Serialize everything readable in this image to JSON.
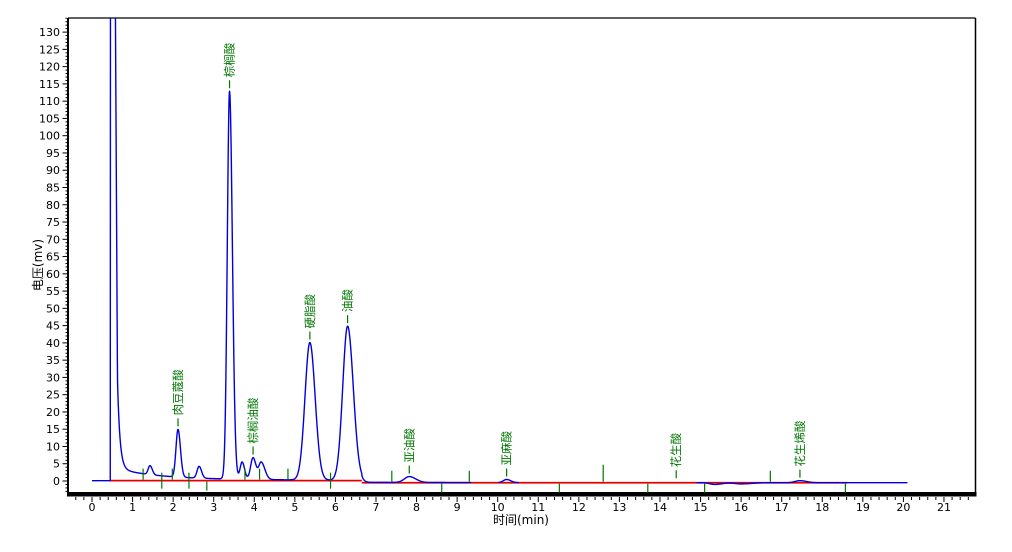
{
  "chart_data": {
    "type": "line",
    "title": "",
    "xlabel": "时间(min)",
    "ylabel": "电压(mv)",
    "x_axis": {
      "tick_start": 0,
      "tick_end": 21,
      "major_step": 1,
      "minor_step": 0.2,
      "visible_min": -0.59,
      "visible_max": 21.77
    },
    "y_axis": {
      "tick_start": 0,
      "tick_end": 130,
      "major_step": 5,
      "minor_step": 1,
      "visible_min": -3.2,
      "visible_max": 134.2
    },
    "grid": false,
    "legend": false,
    "colors": {
      "trace": "#0000dd",
      "baseline": "#e80000",
      "marker": "#007700",
      "axis": "#000000",
      "background": "#ffffff"
    },
    "solvent_front": {
      "rise_t": 0.455,
      "plateau_end_t": 0.575,
      "clipped_above_mv": 134,
      "drop_end_t": 0.63,
      "drop_to_mv": 25
    },
    "peaks": [
      {
        "name": "",
        "rt": 1.43,
        "height_mv": 2.6,
        "sigma_l": 0.045,
        "sigma_r": 0.055,
        "labeled": false
      },
      {
        "name": "肉豆蔻酸",
        "rt": 2.12,
        "height_mv": 13.8,
        "sigma_l": 0.05,
        "sigma_r": 0.06,
        "labeled": true
      },
      {
        "name": "",
        "rt": 2.64,
        "height_mv": 3.4,
        "sigma_l": 0.05,
        "sigma_r": 0.06,
        "labeled": false
      },
      {
        "name": "棕榈酸",
        "rt": 3.39,
        "height_mv": 112.3,
        "sigma_l": 0.055,
        "sigma_r": 0.07,
        "labeled": true
      },
      {
        "name": "",
        "rt": 3.7,
        "height_mv": 5.0,
        "sigma_l": 0.05,
        "sigma_r": 0.06,
        "labeled": false
      },
      {
        "name": "棕榈油酸",
        "rt": 3.97,
        "height_mv": 6.3,
        "sigma_l": 0.06,
        "sigma_r": 0.07,
        "labeled": true
      },
      {
        "name": "",
        "rt": 4.17,
        "height_mv": 5.0,
        "sigma_l": 0.06,
        "sigma_r": 0.09,
        "labeled": false
      },
      {
        "name": "硬脂酸",
        "rt": 5.37,
        "height_mv": 39.8,
        "sigma_l": 0.12,
        "sigma_r": 0.13,
        "labeled": true
      },
      {
        "name": "油酸",
        "rt": 6.3,
        "height_mv": 44.6,
        "sigma_l": 0.12,
        "sigma_r": 0.14,
        "labeled": true
      },
      {
        "name": "亚油酸",
        "rt": 7.82,
        "height_mv": 1.7,
        "sigma_l": 0.12,
        "sigma_r": 0.16,
        "labeled": true
      },
      {
        "name": "亚麻酸",
        "rt": 10.22,
        "height_mv": 0.9,
        "sigma_l": 0.08,
        "sigma_r": 0.1,
        "labeled": true
      },
      {
        "name": "花生酸",
        "rt": 14.4,
        "height_mv": 0.4,
        "sigma_l": 0.05,
        "sigma_r": 0.06,
        "labeled": true
      },
      {
        "name": "",
        "rt": 15.35,
        "height_mv": -0.5,
        "sigma_l": 0.12,
        "sigma_r": 0.18,
        "labeled": false
      },
      {
        "name": "",
        "rt": 16.0,
        "height_mv": -0.35,
        "sigma_l": 0.15,
        "sigma_r": 0.25,
        "labeled": false
      },
      {
        "name": "花生烯酸",
        "rt": 17.45,
        "height_mv": 0.6,
        "sigma_l": 0.12,
        "sigma_r": 0.16,
        "labeled": true
      }
    ],
    "baseline_segments": [
      {
        "t0": 0.44,
        "t1": 6.65,
        "mv": 0.1
      },
      {
        "t0": 6.65,
        "t1": 18.62,
        "mv": -0.5
      }
    ],
    "trace_segments": [
      [
        0,
        9.35
      ],
      [
        10.02,
        10.52
      ],
      [
        14.9,
        20.1
      ]
    ],
    "integration_marks": [
      {
        "t": 1.26,
        "dir": "up"
      },
      {
        "t": 1.72,
        "dir": "both"
      },
      {
        "t": 1.98,
        "dir": "up"
      },
      {
        "t": 2.39,
        "dir": "both"
      },
      {
        "t": 2.83,
        "dir": "down"
      },
      {
        "t": 3.77,
        "dir": "up"
      },
      {
        "t": 4.13,
        "dir": "up"
      },
      {
        "t": 4.83,
        "dir": "up"
      },
      {
        "t": 5.88,
        "dir": "both"
      },
      {
        "t": 7.39,
        "dir": "up"
      },
      {
        "t": 8.62,
        "dir": "down"
      },
      {
        "t": 9.3,
        "dir": "up"
      },
      {
        "t": 11.52,
        "dir": "down"
      },
      {
        "t": 12.6,
        "dir": "tall"
      },
      {
        "t": 13.7,
        "dir": "down"
      },
      {
        "t": 15.1,
        "dir": "down"
      },
      {
        "t": 16.72,
        "dir": "up"
      },
      {
        "t": 18.57,
        "dir": "down"
      }
    ]
  }
}
